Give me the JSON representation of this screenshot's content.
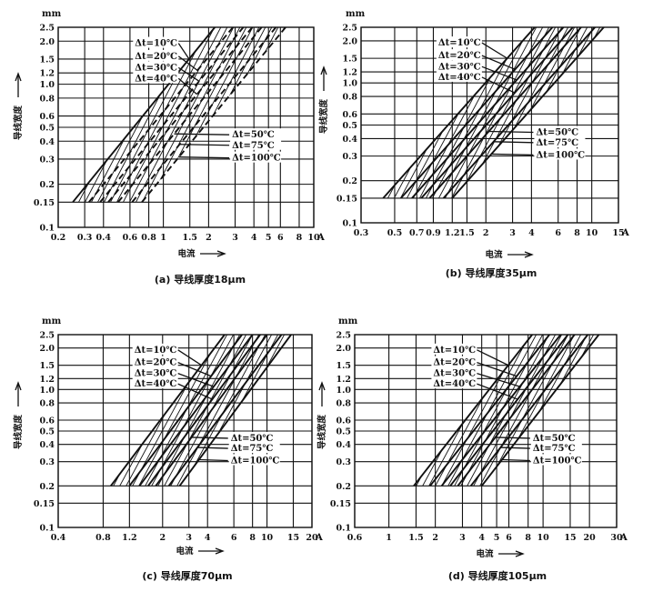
{
  "chart_data": [
    {
      "type": "line",
      "caption": "(a) 导线厚度18μm",
      "xlabel": "电流",
      "ylabel": "导线宽度",
      "y_unit": "mm",
      "x_unit": "A",
      "x_scale": "log",
      "y_scale": "log",
      "xlim": [
        0.2,
        10
      ],
      "ylim": [
        0.1,
        2.5
      ],
      "x_ticks": [
        {
          "value": 0.2,
          "label": "0.2"
        },
        {
          "value": 0.3,
          "label": "0.3"
        },
        {
          "value": 0.4,
          "label": "0.4"
        },
        {
          "value": 0.6,
          "label": "0.6"
        },
        {
          "value": 0.8,
          "label": "0.8"
        },
        {
          "value": 1,
          "label": "1"
        },
        {
          "value": 1.5,
          "label": "1.5"
        },
        {
          "value": 2,
          "label": "2"
        },
        {
          "value": 3,
          "label": "3"
        },
        {
          "value": 4,
          "label": "4"
        },
        {
          "value": 5,
          "label": "5"
        },
        {
          "value": 6,
          "label": "6"
        },
        {
          "value": 8,
          "label": "8"
        },
        {
          "value": 10,
          "label": "10"
        }
      ],
      "y_ticks": [
        {
          "value": 2.5,
          "label": "2.5"
        },
        {
          "value": 2.0,
          "label": "2.0"
        },
        {
          "value": 1.5,
          "label": "1.5"
        },
        {
          "value": 1.2,
          "label": "1.2"
        },
        {
          "value": 1.0,
          "label": "1.0"
        },
        {
          "value": 0.8,
          "label": "0.8"
        },
        {
          "value": 0.6,
          "label": "0.6"
        },
        {
          "value": 0.5,
          "label": "0.5"
        },
        {
          "value": 0.4,
          "label": "0.4"
        },
        {
          "value": 0.3,
          "label": "0.3"
        },
        {
          "value": 0.2,
          "label": "0.2"
        },
        {
          "value": 0.15,
          "label": "0.15"
        },
        {
          "value": 0.1,
          "label": "0.1"
        }
      ],
      "series": [
        {
          "name": "Δt=10℃",
          "points": [
            [
              0.25,
              0.15
            ],
            [
              2.2,
              2.5
            ]
          ]
        },
        {
          "name": "Δt=20℃",
          "points": [
            [
              0.32,
              0.15
            ],
            [
              2.9,
              2.5
            ]
          ]
        },
        {
          "name": "Δt=30℃",
          "points": [
            [
              0.38,
              0.15
            ],
            [
              3.4,
              2.5
            ]
          ]
        },
        {
          "name": "Δt=40℃",
          "points": [
            [
              0.43,
              0.15
            ],
            [
              3.9,
              2.5
            ]
          ]
        },
        {
          "name": "Δt=50℃",
          "points": [
            [
              0.5,
              0.15
            ],
            [
              4.5,
              2.5
            ]
          ]
        },
        {
          "name": "Δt=75℃",
          "points": [
            [
              0.62,
              0.15
            ],
            [
              5.6,
              2.5
            ]
          ]
        },
        {
          "name": "Δt=100℃",
          "points": [
            [
              0.72,
              0.15
            ],
            [
              6.5,
              2.5
            ]
          ]
        }
      ]
    },
    {
      "type": "line",
      "caption": "(b) 导线厚度35μm",
      "xlabel": "电流",
      "ylabel": "导线宽度",
      "y_unit": "mm",
      "x_unit": "A",
      "x_scale": "log",
      "y_scale": "log",
      "xlim": [
        0.3,
        15
      ],
      "ylim": [
        0.1,
        2.5
      ],
      "x_ticks": [
        {
          "value": 0.3,
          "label": "0.3"
        },
        {
          "value": 0.5,
          "label": "0.5"
        },
        {
          "value": 0.7,
          "label": "0.7"
        },
        {
          "value": 0.9,
          "label": "0.9"
        },
        {
          "value": 1.2,
          "label": "1.2"
        },
        {
          "value": 1.5,
          "label": "1.5"
        },
        {
          "value": 2,
          "label": "2"
        },
        {
          "value": 3,
          "label": "3"
        },
        {
          "value": 4,
          "label": "4"
        },
        {
          "value": 6,
          "label": "6"
        },
        {
          "value": 8,
          "label": "8"
        },
        {
          "value": 10,
          "label": "10"
        },
        {
          "value": 15,
          "label": "15"
        }
      ],
      "y_ticks": [
        {
          "value": 2.5,
          "label": "2.5"
        },
        {
          "value": 2.0,
          "label": "2.0"
        },
        {
          "value": 1.5,
          "label": "1.5"
        },
        {
          "value": 1.2,
          "label": "1.2"
        },
        {
          "value": 1.0,
          "label": "1.0"
        },
        {
          "value": 0.8,
          "label": "0.8"
        },
        {
          "value": 0.6,
          "label": "0.6"
        },
        {
          "value": 0.5,
          "label": "0.5"
        },
        {
          "value": 0.4,
          "label": "0.4"
        },
        {
          "value": 0.3,
          "label": "0.3"
        },
        {
          "value": 0.2,
          "label": "0.2"
        },
        {
          "value": 0.15,
          "label": "0.15"
        },
        {
          "value": 0.1,
          "label": "0.1"
        }
      ],
      "series": [
        {
          "name": "Δt=10℃",
          "points": [
            [
              0.42,
              0.15
            ],
            [
              4.2,
              2.5
            ]
          ]
        },
        {
          "name": "Δt=20℃",
          "points": [
            [
              0.55,
              0.15
            ],
            [
              5.5,
              2.5
            ]
          ]
        },
        {
          "name": "Δt=30℃",
          "points": [
            [
              0.65,
              0.15
            ],
            [
              6.5,
              2.5
            ]
          ]
        },
        {
          "name": "Δt=40℃",
          "points": [
            [
              0.75,
              0.15
            ],
            [
              7.5,
              2.5
            ]
          ]
        },
        {
          "name": "Δt=50℃",
          "points": [
            [
              0.85,
              0.15
            ],
            [
              8.5,
              2.5
            ]
          ]
        },
        {
          "name": "Δt=75℃",
          "points": [
            [
              1.05,
              0.15
            ],
            [
              10.5,
              2.5
            ]
          ]
        },
        {
          "name": "Δt=100℃",
          "points": [
            [
              1.2,
              0.15
            ],
            [
              12,
              2.5
            ]
          ]
        }
      ]
    },
    {
      "type": "line",
      "caption": "(c) 导线厚度70μm",
      "xlabel": "电流",
      "ylabel": "导线宽度",
      "y_unit": "mm",
      "x_unit": "A",
      "x_scale": "log",
      "y_scale": "log",
      "xlim": [
        0.4,
        20
      ],
      "ylim": [
        0.1,
        2.5
      ],
      "x_ticks": [
        {
          "value": 0.4,
          "label": "0.4"
        },
        {
          "value": 0.8,
          "label": "0.8"
        },
        {
          "value": 1.2,
          "label": "1.2"
        },
        {
          "value": 2,
          "label": "2"
        },
        {
          "value": 3,
          "label": "3"
        },
        {
          "value": 4,
          "label": "4"
        },
        {
          "value": 6,
          "label": "6"
        },
        {
          "value": 8,
          "label": "8"
        },
        {
          "value": 10,
          "label": "10"
        },
        {
          "value": 15,
          "label": "15"
        },
        {
          "value": 20,
          "label": "20"
        }
      ],
      "y_ticks": [
        {
          "value": 2.5,
          "label": "2.5"
        },
        {
          "value": 2.0,
          "label": "2.0"
        },
        {
          "value": 1.5,
          "label": "1.5"
        },
        {
          "value": 1.2,
          "label": "1.2"
        },
        {
          "value": 1.0,
          "label": "1.0"
        },
        {
          "value": 0.8,
          "label": "0.8"
        },
        {
          "value": 0.6,
          "label": "0.6"
        },
        {
          "value": 0.5,
          "label": "0.5"
        },
        {
          "value": 0.4,
          "label": "0.4"
        },
        {
          "value": 0.3,
          "label": "0.3"
        },
        {
          "value": 0.2,
          "label": "0.2"
        },
        {
          "value": 0.15,
          "label": "0.15"
        },
        {
          "value": 0.1,
          "label": "0.1"
        }
      ],
      "series": [
        {
          "name": "Δt=10℃",
          "points": [
            [
              0.9,
              0.2
            ],
            [
              5.2,
              2.5
            ]
          ]
        },
        {
          "name": "Δt=20℃",
          "points": [
            [
              1.2,
              0.2
            ],
            [
              6.8,
              2.5
            ]
          ]
        },
        {
          "name": "Δt=30℃",
          "points": [
            [
              1.4,
              0.2
            ],
            [
              8.0,
              2.5
            ]
          ]
        },
        {
          "name": "Δt=40℃",
          "points": [
            [
              1.6,
              0.2
            ],
            [
              9.0,
              2.5
            ]
          ]
        },
        {
          "name": "Δt=50℃",
          "points": [
            [
              1.8,
              0.2
            ],
            [
              10,
              2.5
            ]
          ]
        },
        {
          "name": "Δt=75℃",
          "points": [
            [
              2.2,
              0.2
            ],
            [
              12.5,
              2.5
            ]
          ]
        },
        {
          "name": "Δt=100℃",
          "points": [
            [
              2.6,
              0.2
            ],
            [
              14.5,
              2.5
            ]
          ]
        }
      ]
    },
    {
      "type": "line",
      "caption": "(d) 导线厚度105μm",
      "xlabel": "电流",
      "ylabel": "导线宽度",
      "y_unit": "mm",
      "x_unit": "A",
      "x_scale": "log",
      "y_scale": "log",
      "xlim": [
        0.6,
        30
      ],
      "ylim": [
        0.1,
        2.5
      ],
      "x_ticks": [
        {
          "value": 0.6,
          "label": "0.6"
        },
        {
          "value": 1,
          "label": "1"
        },
        {
          "value": 1.5,
          "label": "1.5"
        },
        {
          "value": 2,
          "label": "2"
        },
        {
          "value": 3,
          "label": "3"
        },
        {
          "value": 4,
          "label": "4"
        },
        {
          "value": 5,
          "label": "5"
        },
        {
          "value": 6,
          "label": "6"
        },
        {
          "value": 8,
          "label": "8"
        },
        {
          "value": 10,
          "label": "10"
        },
        {
          "value": 15,
          "label": "15"
        },
        {
          "value": 20,
          "label": "20"
        },
        {
          "value": 30,
          "label": "30"
        }
      ],
      "y_ticks": [
        {
          "value": 2.5,
          "label": "2.5"
        },
        {
          "value": 2.0,
          "label": "2.0"
        },
        {
          "value": 1.5,
          "label": "1.5"
        },
        {
          "value": 1.2,
          "label": "1.2"
        },
        {
          "value": 1.0,
          "label": "1.0"
        },
        {
          "value": 0.8,
          "label": "0.8"
        },
        {
          "value": 0.6,
          "label": "0.6"
        },
        {
          "value": 0.5,
          "label": "0.5"
        },
        {
          "value": 0.4,
          "label": "0.4"
        },
        {
          "value": 0.3,
          "label": "0.3"
        },
        {
          "value": 0.2,
          "label": "0.2"
        },
        {
          "value": 0.15,
          "label": "0.15"
        },
        {
          "value": 0.1,
          "label": "0.1"
        }
      ],
      "series": [
        {
          "name": "Δt=10℃",
          "points": [
            [
              1.45,
              0.2
            ],
            [
              8.5,
              2.5
            ]
          ]
        },
        {
          "name": "Δt=20℃",
          "points": [
            [
              1.85,
              0.2
            ],
            [
              11,
              2.5
            ]
          ]
        },
        {
          "name": "Δt=30℃",
          "points": [
            [
              2.2,
              0.2
            ],
            [
              13,
              2.5
            ]
          ]
        },
        {
          "name": "Δt=40℃",
          "points": [
            [
              2.5,
              0.2
            ],
            [
              14.5,
              2.5
            ]
          ]
        },
        {
          "name": "Δt=50℃",
          "points": [
            [
              2.8,
              0.2
            ],
            [
              16,
              2.5
            ]
          ]
        },
        {
          "name": "Δt=75℃",
          "points": [
            [
              3.4,
              0.2
            ],
            [
              19.5,
              2.5
            ]
          ]
        },
        {
          "name": "Δt=100℃",
          "points": [
            [
              4.0,
              0.2
            ],
            [
              23,
              2.5
            ]
          ]
        }
      ]
    }
  ]
}
